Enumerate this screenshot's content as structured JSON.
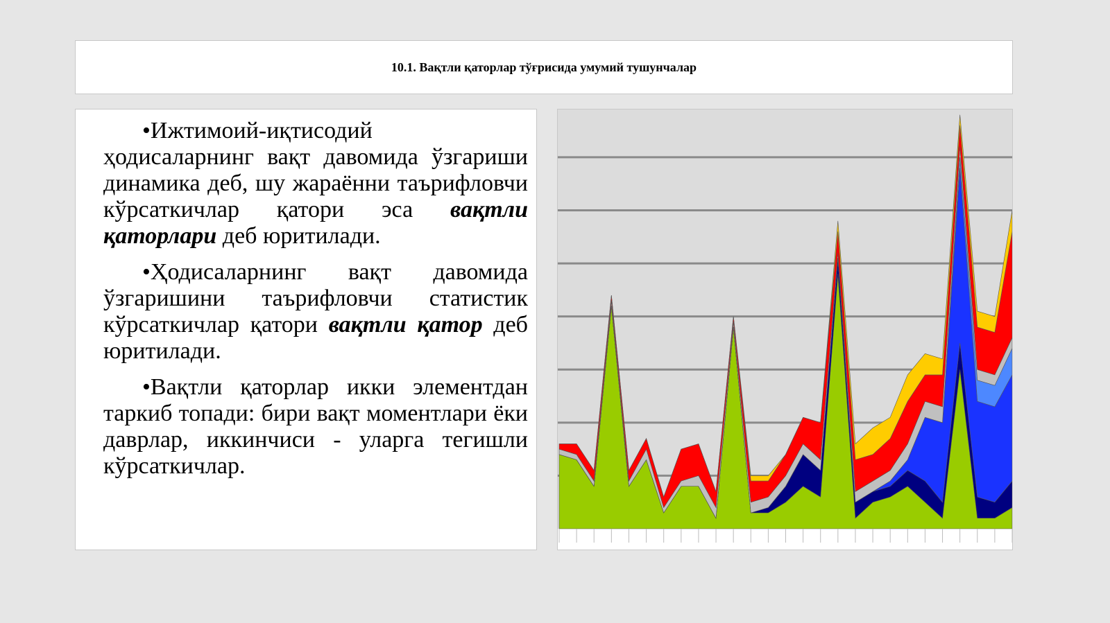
{
  "header": {
    "title": "10.1. Вақтли қаторлар тўғрисида умумий тушунчалар"
  },
  "text": {
    "paragraphs": [
      [
        "•Ижтимоий-иқтисодий ҳодисаларнинг вақт давомида ўзгариши динамика деб, шу жараённи таърифловчи кўрсаткичлар қатори эса ",
        "вақтли қаторлари",
        " деб юритилади."
      ],
      [
        "•Ҳодисаларнинг вақт давомида ўзгаришини таърифловчи статистик кўрсаткичлар қатори ",
        "вақтли қатор",
        " деб юритилади."
      ],
      [
        "•Вақтли қаторлар икки элементдан таркиб топади: бири вақт моментлари ёки даврлар, иккинчиси - уларга тегишли кўрсаткичлар."
      ]
    ]
  },
  "chart_data": {
    "type": "stacked-area",
    "grid": true,
    "categories": [
      null,
      null,
      null,
      null,
      null,
      null,
      null,
      null,
      null,
      null,
      null,
      null,
      null,
      null,
      null,
      null,
      null,
      null,
      null,
      null,
      null,
      null,
      null,
      null,
      null,
      null,
      null
    ],
    "ylim": [
      0,
      7.9
    ],
    "yticks": [
      1,
      2,
      3,
      4,
      5,
      6,
      7
    ],
    "series": [
      {
        "color": "#99cc00",
        "values": [
          1.4,
          1.3,
          0.8,
          4.2,
          0.8,
          1.3,
          0.3,
          0.8,
          0.8,
          0.2,
          3.8,
          0.3,
          0.3,
          0.5,
          0.8,
          0.6,
          4.8,
          0.2,
          0.5,
          0.6,
          0.8,
          0.5,
          0.2,
          3.0,
          0.2,
          0.2,
          0.4
        ]
      },
      {
        "color": "#000080",
        "values": [
          0,
          0,
          0,
          0,
          0,
          0,
          0,
          0,
          0,
          0,
          0,
          0,
          0.1,
          0.3,
          0.6,
          0.5,
          0.3,
          0.3,
          0.2,
          0.2,
          0.3,
          0.4,
          0.3,
          0.5,
          0.4,
          0.3,
          0.5
        ]
      },
      {
        "color": "#1a33ff",
        "values": [
          0,
          0,
          0,
          0,
          0,
          0,
          0,
          0,
          0,
          0,
          0,
          0,
          0,
          0,
          0,
          0,
          0,
          0,
          0,
          0.1,
          0.2,
          1.2,
          1.5,
          3.3,
          1.8,
          1.8,
          2.0
        ]
      },
      {
        "color": "#4d88ff",
        "values": [
          0,
          0,
          0,
          0,
          0,
          0,
          0,
          0,
          0,
          0,
          0,
          0,
          0,
          0,
          0,
          0,
          0,
          0,
          0,
          0,
          0,
          0,
          0,
          0.2,
          0.4,
          0.4,
          0.5
        ]
      },
      {
        "color": "#c0c0c0",
        "values": [
          0.1,
          0.1,
          0.1,
          0.1,
          0.1,
          0.2,
          0.1,
          0.1,
          0.2,
          0.2,
          0.1,
          0.2,
          0.2,
          0.2,
          0.2,
          0.2,
          0.1,
          0.2,
          0.2,
          0.2,
          0.3,
          0.3,
          0.3,
          0.2,
          0.2,
          0.2,
          0.2
        ]
      },
      {
        "color": "#ff0000",
        "values": [
          0.1,
          0.2,
          0.2,
          0.1,
          0.2,
          0.2,
          0.2,
          0.6,
          0.6,
          0.3,
          0.1,
          0.4,
          0.3,
          0.4,
          0.5,
          0.7,
          0.4,
          0.6,
          0.5,
          0.6,
          0.8,
          0.5,
          0.6,
          0.4,
          0.8,
          0.8,
          2.0
        ]
      },
      {
        "color": "#ffcc00",
        "values": [
          0,
          0,
          0,
          0,
          0,
          0,
          0,
          0,
          0,
          0,
          0,
          0.1,
          0.1,
          0,
          0,
          0,
          0.2,
          0.3,
          0.5,
          0.4,
          0.5,
          0.4,
          0.3,
          0.2,
          0.3,
          0.3,
          0.4
        ]
      }
    ]
  }
}
